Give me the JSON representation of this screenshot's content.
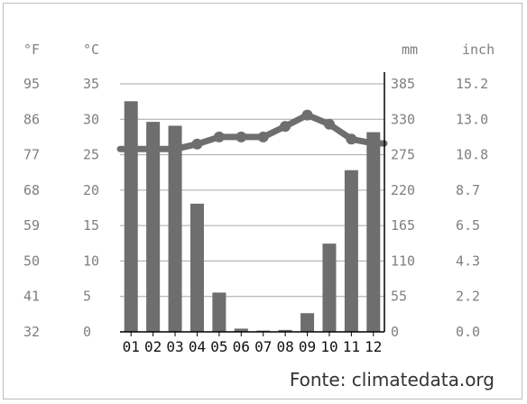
{
  "chart_data": {
    "type": "bar",
    "axis_headers": {
      "f": "°F",
      "c": "°C",
      "mm": "mm",
      "inch": "inch"
    },
    "f_ticks": [
      "32",
      "41",
      "50",
      "59",
      "68",
      "77",
      "86",
      "95"
    ],
    "c_ticks": [
      "0",
      "5",
      "10",
      "15",
      "20",
      "25",
      "30",
      "35"
    ],
    "mm_ticks": [
      "0",
      "55",
      "110",
      "165",
      "220",
      "275",
      "330",
      "385"
    ],
    "inch_ticks": [
      "0.0",
      "2.2",
      "4.3",
      "6.5",
      "8.7",
      "10.8",
      "13.0",
      "15.2"
    ],
    "categories": [
      "01",
      "02",
      "03",
      "04",
      "05",
      "06",
      "07",
      "08",
      "09",
      "10",
      "11",
      "12"
    ],
    "series": [
      {
        "values": [
          358,
          326,
          320,
          199,
          61,
          5,
          2,
          3,
          29,
          137,
          251,
          310
        ],
        "color": "#6e6e6e"
      },
      {
        "values": [
          25.8,
          25.8,
          25.8,
          26.5,
          27.5,
          27.5,
          27.5,
          29,
          30.6,
          29.3,
          27.2,
          26.6
        ],
        "color": "#6e6e6e"
      }
    ],
    "ylim_mm": [
      0,
      385
    ],
    "ylim_c": [
      0,
      35
    ],
    "grid": true,
    "source": "Fonte: climatedata.org"
  }
}
